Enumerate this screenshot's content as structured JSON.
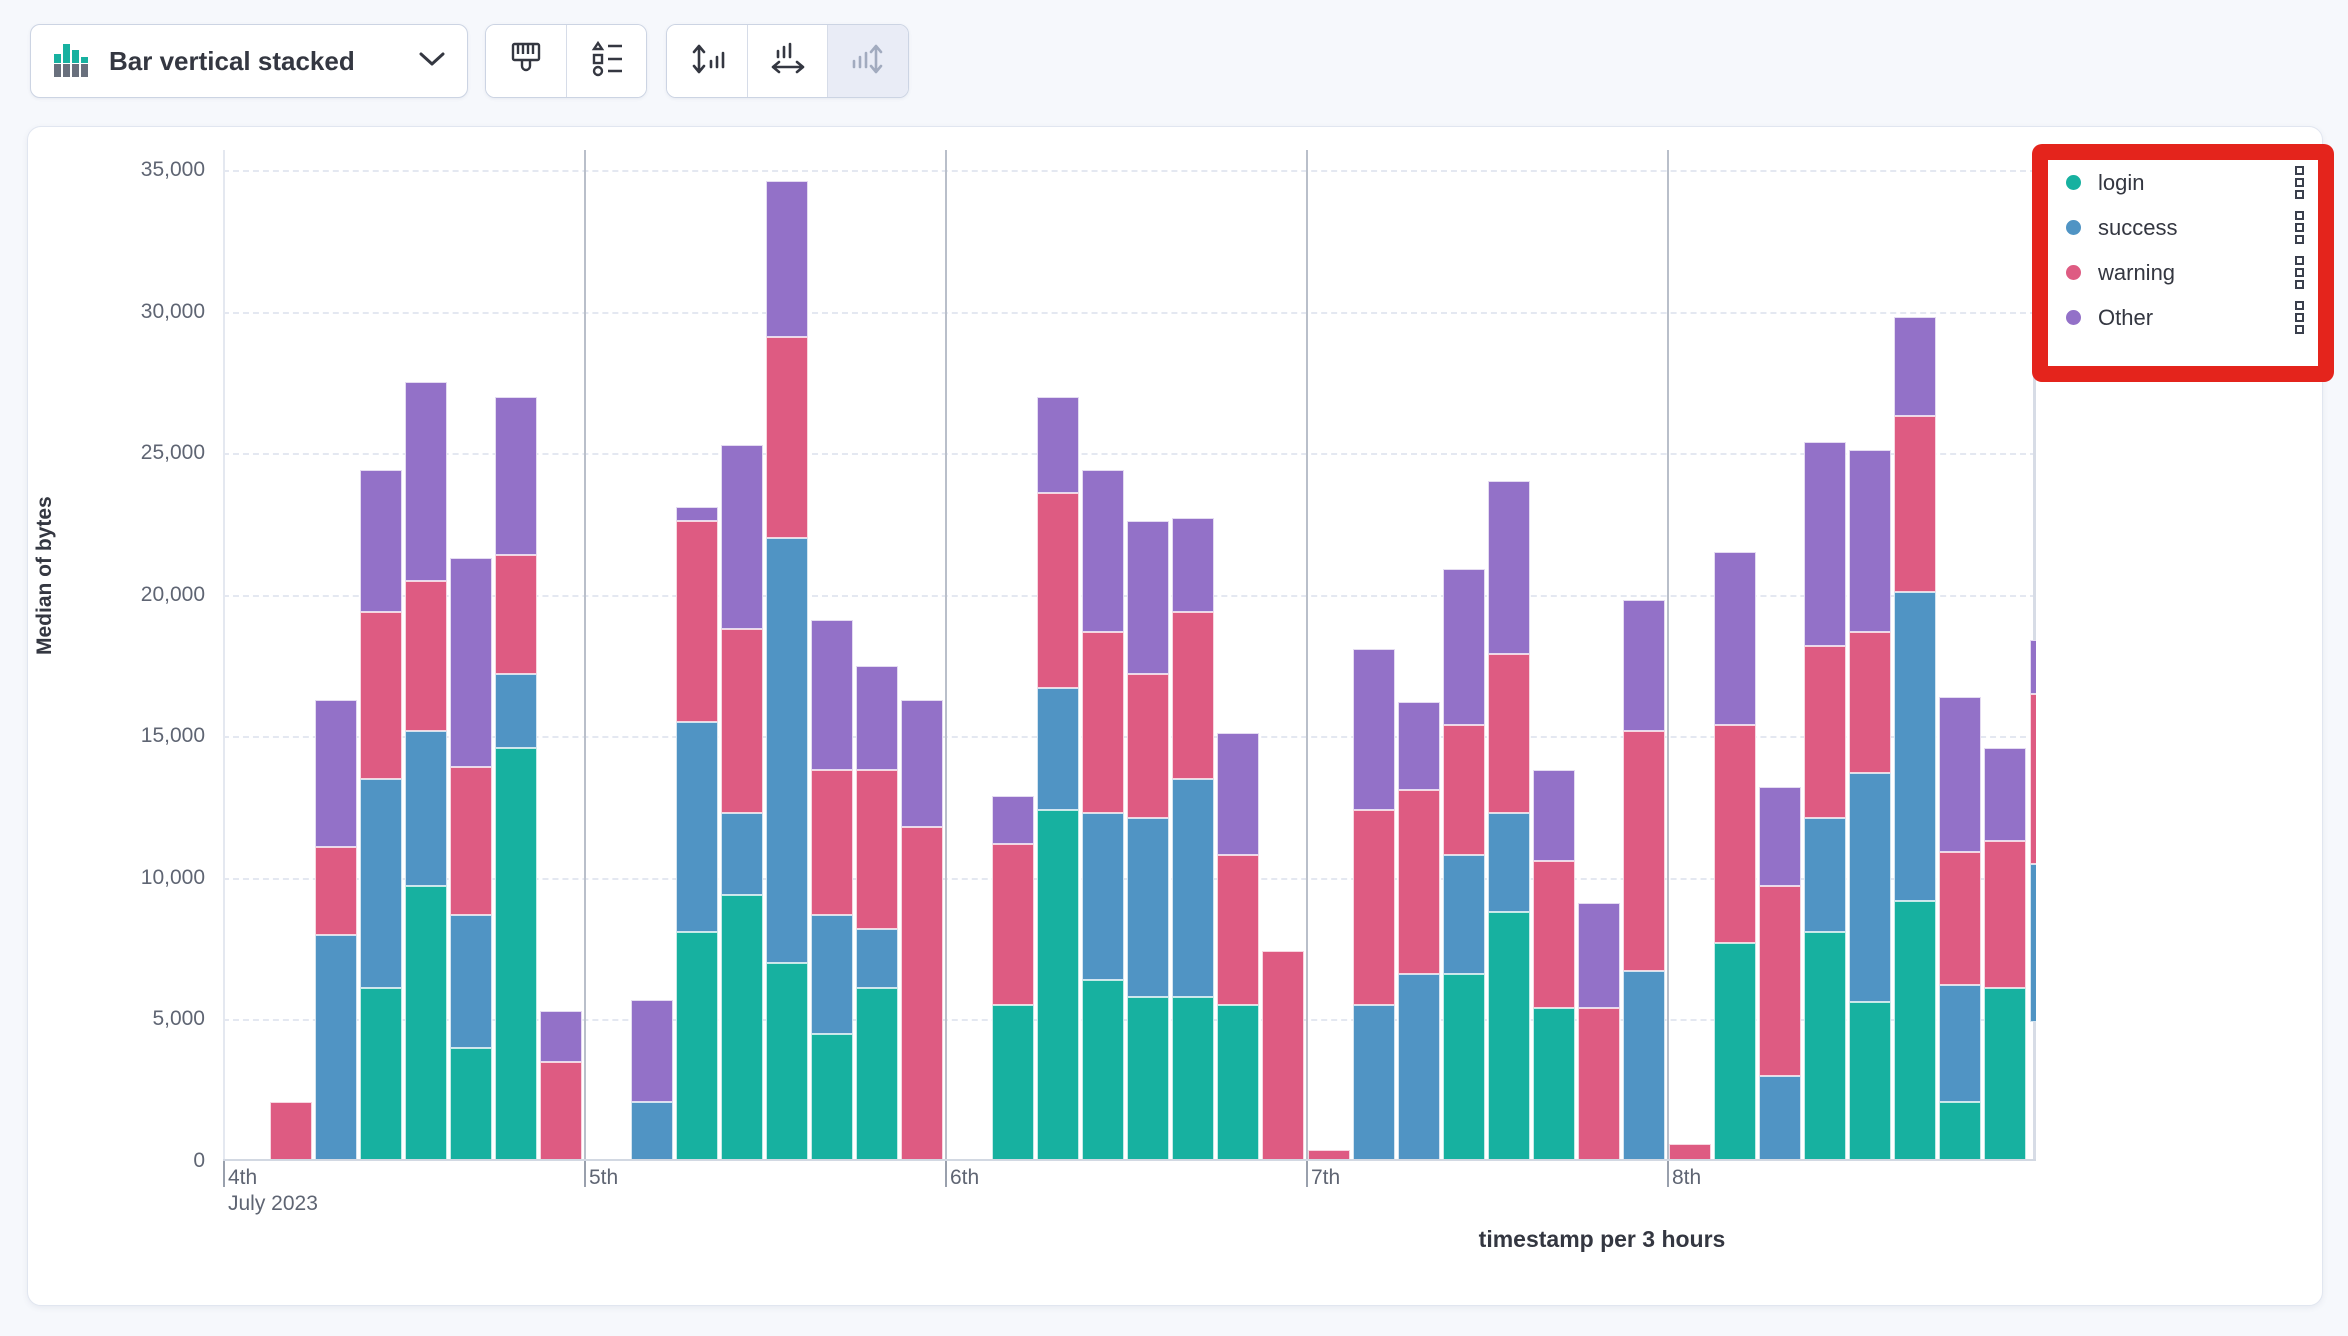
{
  "toolbar": {
    "chart_type_label": "Bar vertical stacked",
    "chart_type_icon": "bar-vertical-stacked-icon",
    "chevron_icon": "chevron-down-icon",
    "option_buttons": [
      "paint-brush-icon",
      "visual-options-icon"
    ],
    "axis_buttons": [
      "left-axis-icon",
      "bottom-axis-icon",
      "right-axis-icon-disabled"
    ]
  },
  "legend": {
    "highlight_color": "#e4241c",
    "action_icon": "boxes-vertical-icon",
    "items": [
      {
        "label": "login",
        "color": "#17b1a0"
      },
      {
        "label": "success",
        "color": "#5094c4"
      },
      {
        "label": "warning",
        "color": "#de5b82"
      },
      {
        "label": "Other",
        "color": "#9371c8"
      }
    ]
  },
  "chart_data": {
    "type": "bar",
    "stacked": true,
    "ylabel": "Median of bytes",
    "xlabel": "timestamp per 3 hours",
    "ylim": [
      0,
      35000
    ],
    "y_tick_step": 5000,
    "y_tick_labels": [
      "0",
      "5,000",
      "10,000",
      "15,000",
      "20,000",
      "25,000",
      "30,000",
      "35,000"
    ],
    "x_axis": {
      "tick_labels": [
        "4th",
        "5th",
        "6th",
        "7th",
        "8th"
      ],
      "first_tick_sub_label": "July 2023",
      "bucket_interval": "3 hours",
      "slots_per_day": 8
    },
    "grid": {
      "horizontal": "dashed",
      "vertical_day_separators": true
    },
    "legend_position": "right",
    "series": [
      {
        "name": "login",
        "color": "#17b1a0",
        "values": [
          0,
          0,
          0,
          6100,
          9700,
          4000,
          14600,
          0,
          0,
          0,
          8100,
          9400,
          7000,
          4500,
          6100,
          0,
          0,
          5500,
          12400,
          6400,
          5800,
          5800,
          5500,
          0,
          0,
          0,
          0,
          6600,
          8800,
          5400,
          0,
          0,
          0,
          7700,
          0,
          8100,
          5600,
          9200,
          2100,
          6100
        ]
      },
      {
        "name": "success",
        "color": "#5094c4",
        "values": [
          0,
          0,
          8000,
          7400,
          5500,
          4700,
          2600,
          0,
          0,
          2100,
          7400,
          2900,
          15000,
          4200,
          2100,
          0,
          0,
          0,
          4300,
          5900,
          6300,
          7700,
          0,
          0,
          0,
          5500,
          6600,
          4200,
          3500,
          0,
          0,
          6700,
          0,
          0,
          3000,
          4000,
          8100,
          10900,
          4100,
          0
        ]
      },
      {
        "name": "warning",
        "color": "#de5b82",
        "values": [
          0,
          2100,
          3100,
          5900,
          5300,
          5200,
          4200,
          3500,
          0,
          0,
          7100,
          6500,
          7100,
          5100,
          5600,
          11800,
          0,
          5700,
          6900,
          6400,
          5100,
          5900,
          5300,
          7400,
          400,
          6900,
          6500,
          4600,
          5600,
          5200,
          5400,
          8500,
          600,
          7700,
          6700,
          6100,
          5000,
          6200,
          4700,
          5200
        ]
      },
      {
        "name": "Other",
        "color": "#9371c8",
        "values": [
          0,
          0,
          5200,
          5000,
          7000,
          7400,
          5600,
          1800,
          0,
          3600,
          500,
          6500,
          5500,
          5300,
          3700,
          4500,
          0,
          1700,
          3400,
          5700,
          5400,
          3300,
          4300,
          0,
          0,
          5700,
          3100,
          5500,
          6100,
          3200,
          3700,
          4600,
          0,
          6100,
          3500,
          7200,
          6400,
          3500,
          5500,
          3300
        ]
      }
    ],
    "clipped_bar_at_right_edge": {
      "note": "partial bucket clipped by chart edge",
      "visible_from": 4900,
      "segments": {
        "login": 0,
        "success": 5600,
        "warning": 6000,
        "Other": 1900
      }
    }
  }
}
